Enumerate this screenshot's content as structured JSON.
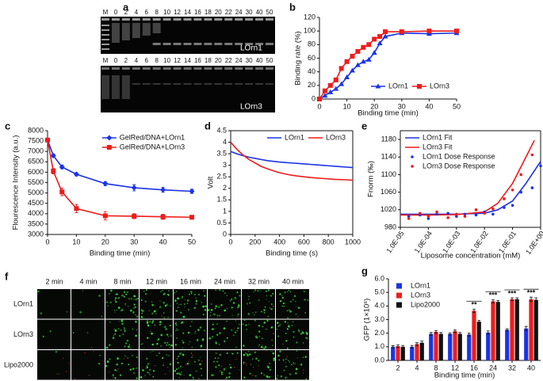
{
  "panel_a": {
    "label": "a",
    "lanes": [
      "M",
      "0",
      "2",
      "4",
      "6",
      "8",
      "10",
      "12",
      "14",
      "16",
      "18",
      "20",
      "22",
      "24",
      "30",
      "40",
      "50"
    ],
    "gels": [
      "LOrn1",
      "LOrn3"
    ]
  },
  "panel_f": {
    "label": "f",
    "times": [
      "2 min",
      "4 min",
      "8 min",
      "12 min",
      "16 min",
      "24 min",
      "32 min",
      "40 min"
    ],
    "rows": [
      "LOrn1",
      "LOrn3",
      "Lipo2000"
    ]
  },
  "chart_data": [
    {
      "label": "b",
      "type": "line",
      "xlabel": "Binding time (min)",
      "ylabel": "Binding rate (%)",
      "x": [
        0,
        2,
        4,
        6,
        8,
        10,
        12,
        14,
        16,
        18,
        20,
        22,
        24,
        30,
        40,
        50
      ],
      "xlim": [
        0,
        50
      ],
      "xticks": [
        0,
        10,
        20,
        30,
        40,
        50
      ],
      "ylim": [
        0,
        120
      ],
      "yticks": [
        0,
        20,
        40,
        60,
        80,
        100,
        120
      ],
      "legend": "lower right",
      "legend_direction": "horizontal",
      "series": [
        {
          "name": "LOrn1",
          "color": "#1a33e6",
          "marker": "triangle",
          "values": [
            0,
            5,
            10,
            15,
            22,
            32,
            42,
            50,
            55,
            58,
            68,
            82,
            92,
            97,
            96,
            97
          ]
        },
        {
          "name": "LOrn3",
          "color": "#ee1c1c",
          "marker": "square",
          "values": [
            0,
            12,
            20,
            28,
            45,
            55,
            63,
            70,
            76,
            80,
            88,
            92,
            99,
            99,
            100,
            100
          ]
        }
      ]
    },
    {
      "label": "c",
      "type": "line",
      "xlabel": "Binding time (min)",
      "ylabel": "Flourescence Intensity (a.u.)",
      "x": [
        0,
        2,
        5,
        10,
        20,
        30,
        40,
        50
      ],
      "xlim": [
        0,
        50
      ],
      "xticks": [
        0,
        10,
        20,
        30,
        40,
        50
      ],
      "ylim": [
        3000,
        8000
      ],
      "yticks": [
        3000,
        3500,
        4000,
        4500,
        5000,
        5500,
        6000,
        6500,
        7000,
        7500,
        8000
      ],
      "legend": "upper right",
      "series": [
        {
          "name": "GelRed/DNA+LOrn1",
          "color": "#1a33e6",
          "marker": "diamond",
          "values": [
            7550,
            6800,
            6250,
            5900,
            5450,
            5250,
            5150,
            5080
          ],
          "errors": [
            60,
            80,
            90,
            80,
            100,
            150,
            120,
            100
          ]
        },
        {
          "name": "GelRed/DNA+LOrn3",
          "color": "#ee1c1c",
          "marker": "square",
          "values": [
            7550,
            6050,
            5050,
            4250,
            3900,
            3880,
            3850,
            3830
          ],
          "errors": [
            80,
            130,
            180,
            200,
            200,
            120,
            120,
            80
          ]
        }
      ]
    },
    {
      "label": "d",
      "type": "line",
      "xlabel": "Binding time (s)",
      "ylabel": "Volt",
      "box": true,
      "x": [
        0,
        50,
        100,
        150,
        200,
        250,
        300,
        350,
        400,
        450,
        500,
        550,
        600,
        650,
        700,
        750,
        800,
        850,
        900,
        950,
        1000
      ],
      "xlim": [
        0,
        1000
      ],
      "xticks": [
        0,
        200,
        400,
        600,
        800,
        1000
      ],
      "ylim": [
        0,
        4.5
      ],
      "yticks": [
        0,
        0.5,
        1,
        1.5,
        2,
        2.5,
        3,
        3.5,
        4,
        4.5
      ],
      "legend": "upper right",
      "legend_direction": "horizontal",
      "series": [
        {
          "name": "LOrn1",
          "color": "#1a33e6",
          "values": [
            3.6,
            3.5,
            3.42,
            3.35,
            3.3,
            3.25,
            3.2,
            3.17,
            3.14,
            3.12,
            3.1,
            3.08,
            3.06,
            3.04,
            3.02,
            3.0,
            2.98,
            2.96,
            2.94,
            2.92,
            2.9
          ]
        },
        {
          "name": "LOrn3",
          "color": "#ee1c1c",
          "values": [
            4.0,
            3.7,
            3.45,
            3.25,
            3.1,
            2.95,
            2.85,
            2.76,
            2.68,
            2.62,
            2.57,
            2.53,
            2.5,
            2.47,
            2.45,
            2.43,
            2.41,
            2.39,
            2.38,
            2.37,
            2.35
          ]
        }
      ]
    },
    {
      "label": "e",
      "type": "scatter",
      "xlabel": "Liposome concentration (mM)",
      "ylabel": "Fnorm (‰)",
      "box": true,
      "xscale": "log",
      "xlim": [
        1e-05,
        1
      ],
      "xticks": [
        {
          "value": 1e-05,
          "label": "1.0E-05"
        },
        {
          "value": 0.0001,
          "label": "1.0E-04"
        },
        {
          "value": 0.001,
          "label": "1.0E-03"
        },
        {
          "value": 0.01,
          "label": "1.0E-02"
        },
        {
          "value": 0.1,
          "label": "1.0E-01"
        },
        {
          "value": 1,
          "label": "1.0E+00"
        }
      ],
      "ylim": [
        980,
        1200
      ],
      "yticks": [
        980,
        1020,
        1060,
        1100,
        1140,
        1180
      ],
      "legend": "upper left",
      "series": [
        {
          "name": "LOrn1 Fit",
          "color": "#1a33e6",
          "style": "line",
          "x": [
            1e-05,
            0.0001,
            0.001,
            0.01,
            0.03,
            0.1,
            0.3,
            1
          ],
          "values": [
            1010,
            1010,
            1010,
            1012,
            1020,
            1040,
            1080,
            1130
          ]
        },
        {
          "name": "LOrn3 Fit",
          "color": "#ee1c1c",
          "style": "line",
          "x": [
            1e-05,
            0.0001,
            0.001,
            0.01,
            0.03,
            0.1,
            0.3,
            0.6
          ],
          "values": [
            1008,
            1008,
            1009,
            1015,
            1035,
            1080,
            1140,
            1178
          ]
        },
        {
          "name": "LOrn1 Dose Response",
          "color": "#1a33e6",
          "style": "points",
          "x": [
            2e-05,
            5e-05,
            0.0001,
            0.0002,
            0.0005,
            0.001,
            0.002,
            0.005,
            0.01,
            0.02,
            0.05,
            0.1,
            0.2,
            0.5,
            1
          ],
          "values": [
            1005,
            1008,
            1000,
            1010,
            1012,
            1005,
            1010,
            1008,
            1015,
            1010,
            1025,
            1030,
            1060,
            1070,
            1120
          ]
        },
        {
          "name": "LOrn3 Dose Response",
          "color": "#ee1c1c",
          "style": "points",
          "x": [
            2e-05,
            5e-05,
            0.0001,
            0.0002,
            0.0005,
            0.001,
            0.002,
            0.005,
            0.01,
            0.02,
            0.05,
            0.1,
            0.2,
            0.5
          ],
          "values": [
            1000,
            1012,
            1005,
            1015,
            1002,
            1010,
            1005,
            1020,
            1012,
            1022,
            1045,
            1065,
            1100,
            1145
          ]
        }
      ]
    },
    {
      "label": "g",
      "type": "bar",
      "xlabel": "Binding time (min)",
      "ylabel": "GFP (1×10⁶)",
      "categories": [
        "2",
        "4",
        "8",
        "12",
        "16",
        "24",
        "32",
        "40"
      ],
      "ylim": [
        0,
        6
      ],
      "yticks": [
        {
          "value": 0,
          "label": "0.0"
        },
        {
          "value": 1,
          "label": "1.0"
        },
        {
          "value": 2,
          "label": "2.0"
        },
        {
          "value": 3,
          "label": "3.0"
        },
        {
          "value": 4,
          "label": "4.0"
        },
        {
          "value": 5,
          "label": "5.0"
        },
        {
          "value": 6,
          "label": "6.0"
        }
      ],
      "legend": "upper left",
      "significance": [
        null,
        null,
        null,
        null,
        "**",
        "***",
        "***",
        "***"
      ],
      "series": [
        {
          "name": "LOrn1",
          "color": "#1a33e6",
          "values": [
            1.0,
            1.0,
            1.95,
            1.95,
            1.9,
            2.05,
            2.25,
            2.35
          ],
          "errors": [
            0.08,
            0.1,
            0.1,
            0.08,
            0.1,
            0.12,
            0.08,
            0.15
          ]
        },
        {
          "name": "LOrn3",
          "color": "#ee1c1c",
          "values": [
            1.05,
            1.2,
            2.1,
            2.15,
            3.65,
            4.35,
            4.5,
            4.5
          ],
          "errors": [
            0.1,
            0.1,
            0.1,
            0.1,
            0.12,
            0.12,
            0.1,
            0.15
          ]
        },
        {
          "name": "Lipo2000",
          "color": "#111111",
          "values": [
            1.0,
            1.3,
            1.95,
            1.95,
            2.85,
            4.3,
            4.5,
            4.45
          ],
          "errors": [
            0.1,
            0.12,
            0.1,
            0.1,
            0.1,
            0.1,
            0.1,
            0.15
          ]
        }
      ]
    }
  ]
}
